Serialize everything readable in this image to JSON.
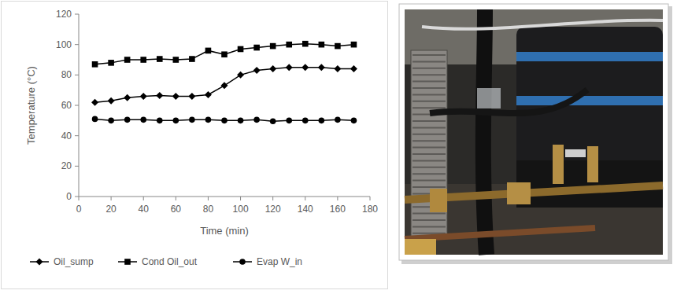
{
  "chart_data": {
    "type": "line",
    "x_label": "Time (min)",
    "y_label": "Temperature (°C)",
    "x": [
      10,
      20,
      30,
      40,
      50,
      60,
      70,
      80,
      90,
      100,
      110,
      120,
      130,
      140,
      150,
      160,
      170
    ],
    "series": [
      {
        "name": "Oil_sump",
        "color": "#000000",
        "marker": "diamond",
        "values": [
          62,
          63,
          65,
          66,
          66.5,
          66,
          66,
          67,
          73,
          80,
          83,
          84,
          85,
          85,
          85,
          84,
          84
        ]
      },
      {
        "name": "Cond Oil_out",
        "color": "#000000",
        "marker": "square",
        "values": [
          87,
          88,
          90,
          90,
          90.5,
          90,
          90.5,
          96,
          93.5,
          97,
          98,
          99,
          100,
          100.5,
          100,
          99,
          100
        ]
      },
      {
        "name": "Evap W_in",
        "color": "#000000",
        "marker": "circle",
        "values": [
          51,
          50,
          50.5,
          50.5,
          50,
          50,
          50.5,
          50.5,
          50,
          50,
          50.5,
          49.5,
          50,
          50,
          50,
          50.5,
          50
        ]
      }
    ],
    "xlim": [
      0,
      180
    ],
    "xticks": [
      0,
      20,
      40,
      60,
      80,
      100,
      120,
      140,
      160,
      180
    ],
    "ylim": [
      0,
      120
    ],
    "yticks": [
      0,
      20,
      40,
      60,
      80,
      100,
      120
    ],
    "grid": false,
    "legend": "bottom"
  }
}
